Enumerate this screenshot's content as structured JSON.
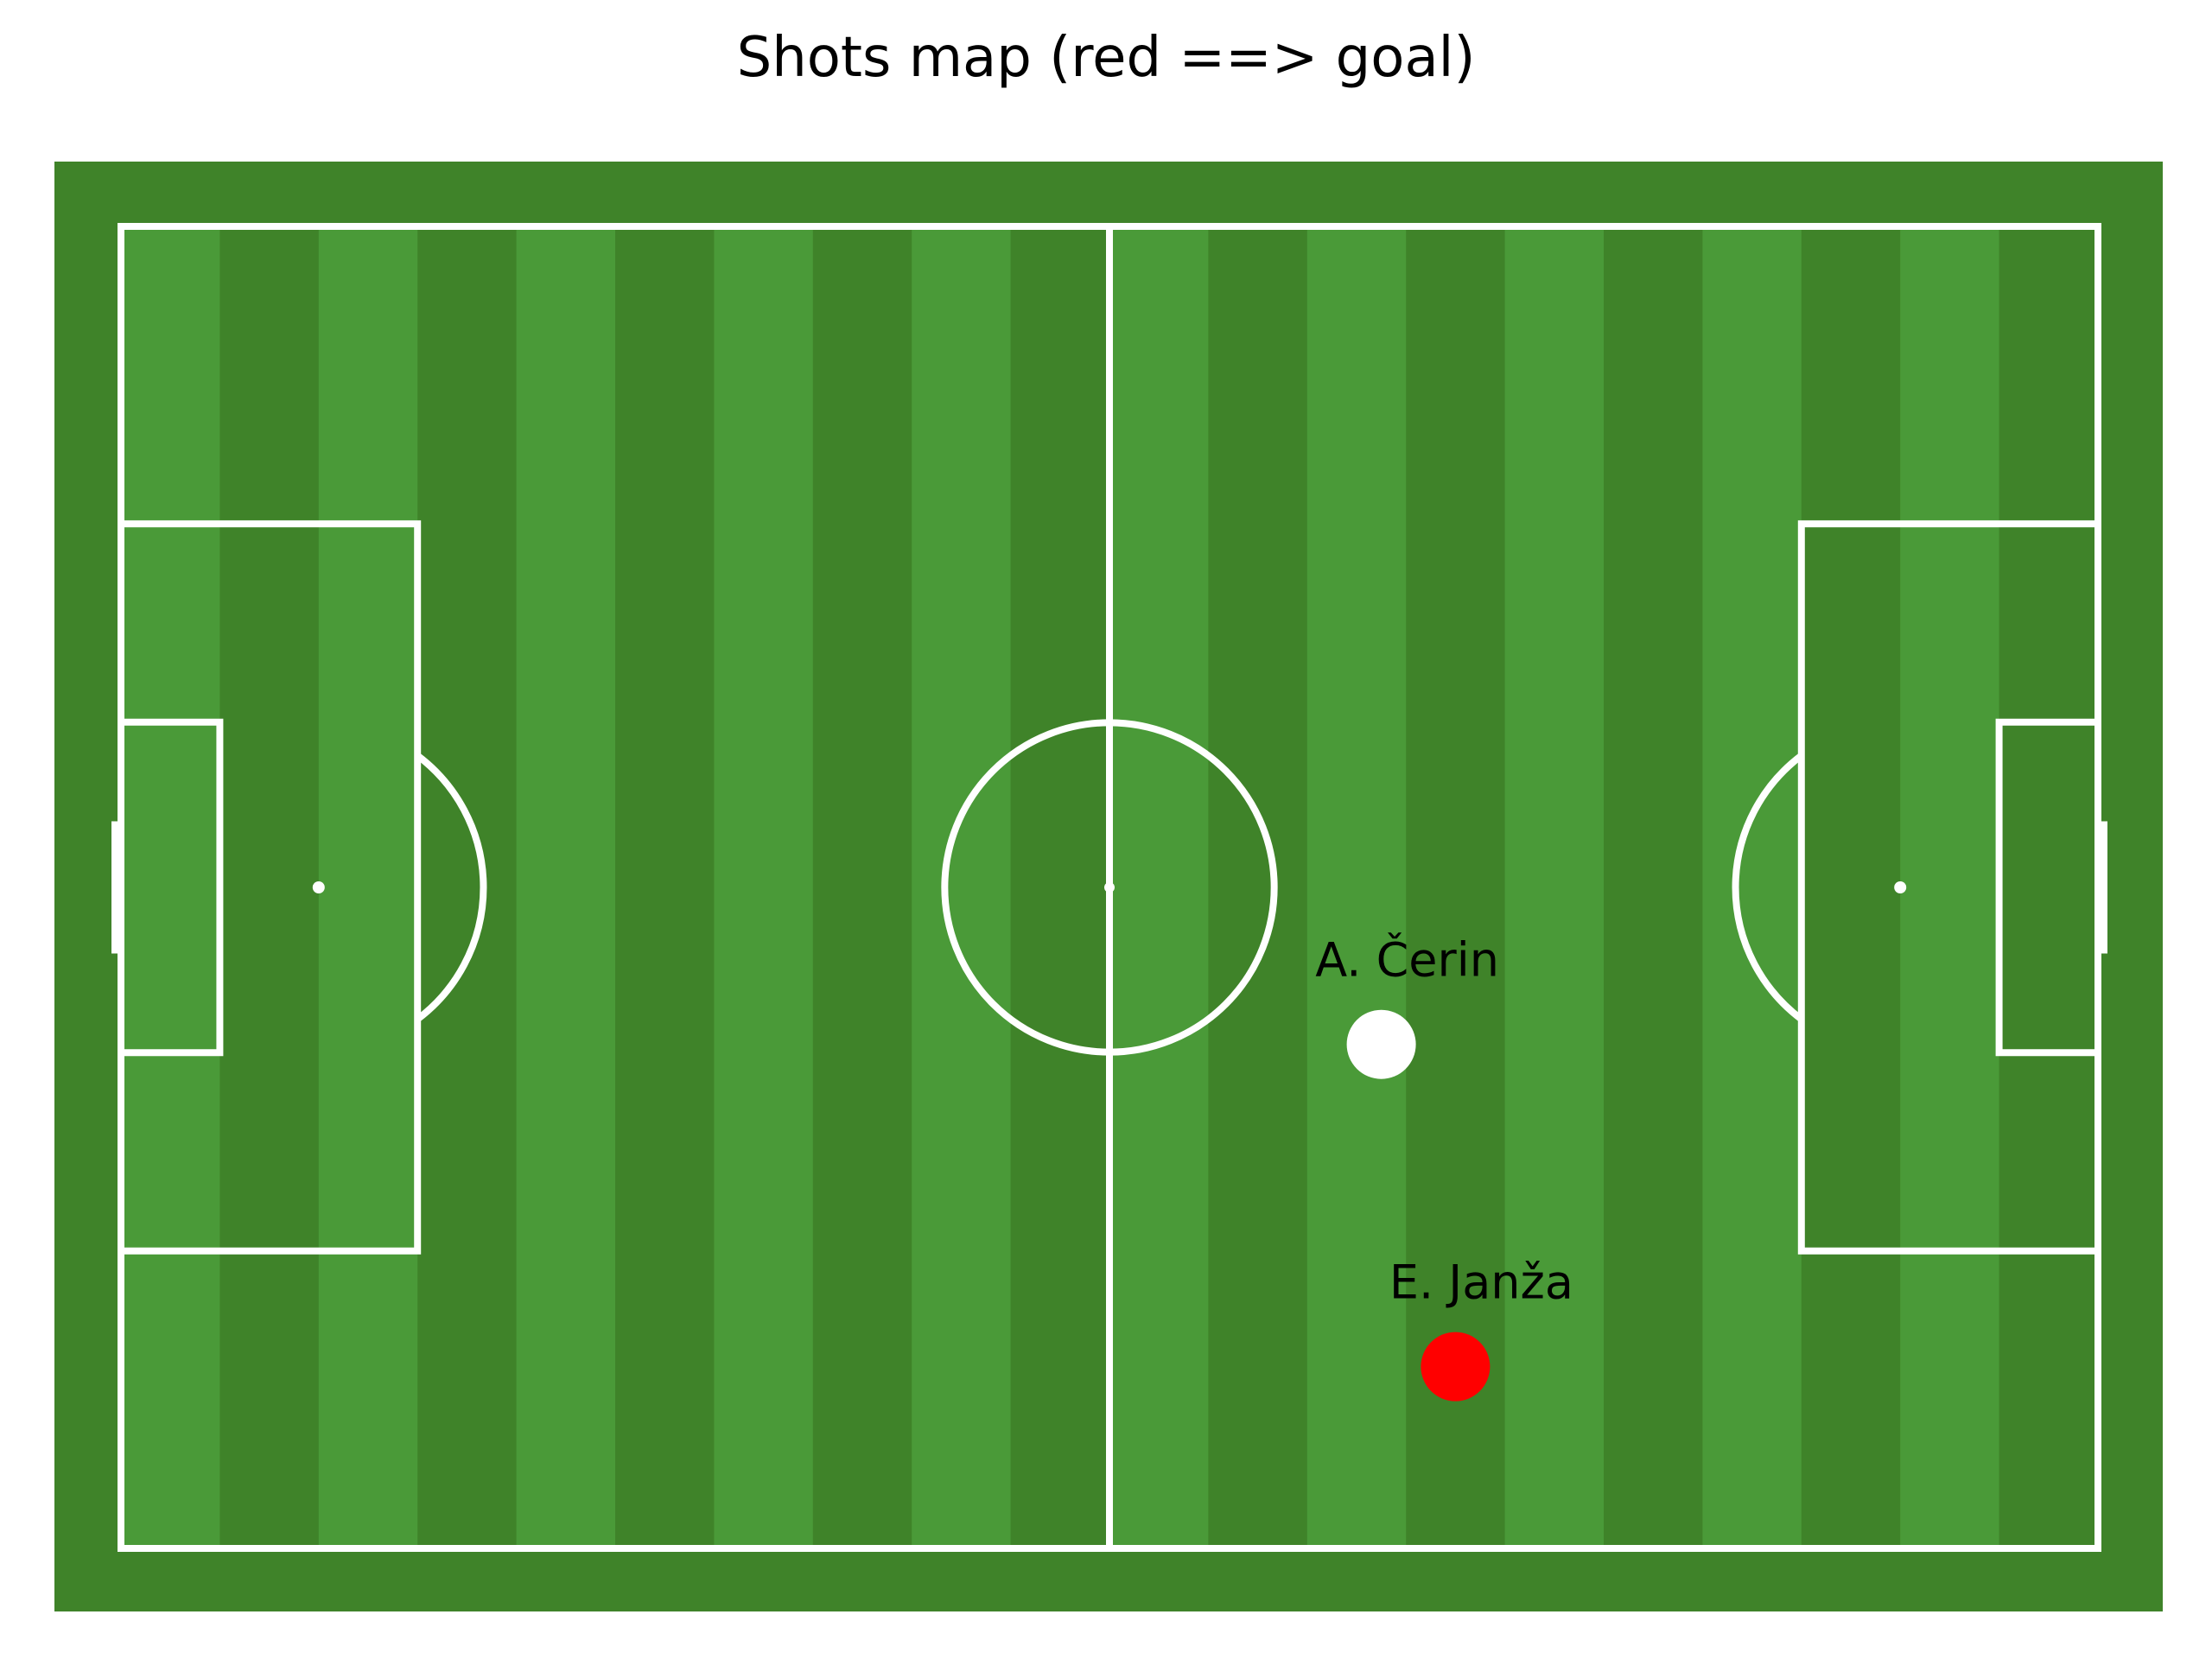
{
  "chart_data": {
    "type": "scatter",
    "title": "Shots map (red ==> goal)",
    "pitch": {
      "length": 120,
      "width": 80,
      "grass_colors": [
        "#4a9a38",
        "#3f8329"
      ],
      "line_color": "#ffffff",
      "stripes": 20
    },
    "shots": [
      {
        "player": "A. Čerin",
        "x": 76.5,
        "y": 49.5,
        "goal": false,
        "color": "#ffffff"
      },
      {
        "player": "E. Janža",
        "x": 81.0,
        "y": 69.0,
        "goal": true,
        "color": "#ff0000"
      }
    ]
  }
}
